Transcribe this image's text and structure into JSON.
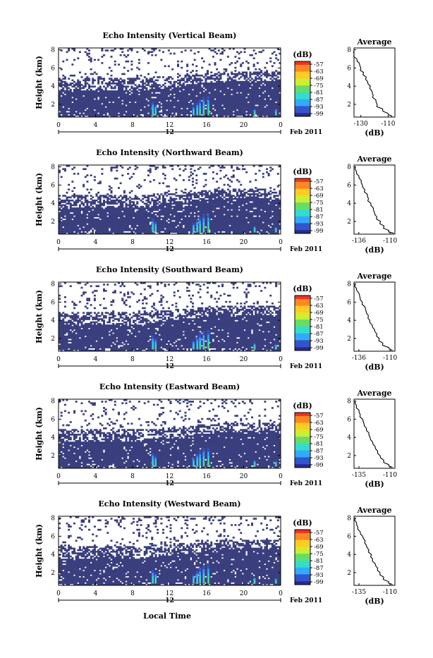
{
  "figure": {
    "xlabel": "Local Time",
    "date_label": "Feb 2011",
    "day_label": "12"
  },
  "chart_data": [
    {
      "type": "heatmap",
      "title": "Echo Intensity (Vertical Beam)",
      "ylabel": "Height (km)",
      "x_ticks": [
        "0",
        "4",
        "8",
        "12",
        "16",
        "20",
        "0"
      ],
      "x_range": [
        0,
        24
      ],
      "y_ticks": [
        "2",
        "4",
        "6",
        "8"
      ],
      "y_range": [
        0.6,
        8.2
      ],
      "colorbar": {
        "unit": "(dB)",
        "ticks": [
          "-57",
          "-63",
          "-69",
          "-75",
          "-81",
          "-87",
          "-93",
          "-99"
        ]
      },
      "profile": {
        "title": "Average",
        "xlabel": "(dB)",
        "x_ticks": [
          "-130",
          "-110"
        ],
        "x_range": [
          -135,
          -105
        ],
        "y_ticks": [
          "2",
          "4",
          "6",
          "8"
        ],
        "height": [
          0.7,
          1.0,
          1.5,
          2.0,
          2.5,
          3.0,
          3.5,
          4.0,
          4.5,
          5.0,
          5.5,
          6.0,
          6.5,
          7.0,
          7.5,
          8.0
        ],
        "db": [
          -107,
          -110,
          -114,
          -118,
          -119,
          -121,
          -122,
          -123,
          -125,
          -126,
          -128,
          -130,
          -131,
          -133,
          -135,
          -135
        ]
      }
    },
    {
      "type": "heatmap",
      "title": "Echo Intensity (Northward Beam)",
      "ylabel": "Height (km)",
      "x_ticks": [
        "0",
        "4",
        "8",
        "12",
        "16",
        "20",
        "0"
      ],
      "x_range": [
        0,
        24
      ],
      "y_ticks": [
        "2",
        "4",
        "6",
        "8"
      ],
      "y_range": [
        0.6,
        8.2
      ],
      "colorbar": {
        "unit": "(dB)",
        "ticks": [
          "-57",
          "-63",
          "-69",
          "-75",
          "-81",
          "-87",
          "-93",
          "-99"
        ]
      },
      "profile": {
        "title": "Average",
        "xlabel": "(dB)",
        "x_ticks": [
          "-136",
          "-110"
        ],
        "x_range": [
          -140,
          -106
        ],
        "y_ticks": [
          "2",
          "4",
          "6",
          "8"
        ],
        "height": [
          0.7,
          1.0,
          1.5,
          2.0,
          2.5,
          3.0,
          3.5,
          4.0,
          4.5,
          5.0,
          5.5,
          6.0,
          6.5,
          7.0,
          7.5,
          8.0
        ],
        "db": [
          -107,
          -111,
          -115,
          -118,
          -121,
          -123,
          -124,
          -126,
          -128,
          -129,
          -131,
          -133,
          -134,
          -136,
          -138,
          -139
        ]
      }
    },
    {
      "type": "heatmap",
      "title": "Echo Intensity (Southward Beam)",
      "ylabel": "Height (km)",
      "x_ticks": [
        "0",
        "4",
        "8",
        "12",
        "16",
        "20",
        "0"
      ],
      "x_range": [
        0,
        24
      ],
      "y_ticks": [
        "2",
        "4",
        "6",
        "8"
      ],
      "y_range": [
        0.6,
        8.2
      ],
      "colorbar": {
        "unit": "(dB)",
        "ticks": [
          "-57",
          "-63",
          "-69",
          "-75",
          "-81",
          "-87",
          "-93",
          "-99"
        ]
      },
      "profile": {
        "title": "Average",
        "xlabel": "(dB)",
        "x_ticks": [
          "-136",
          "-110"
        ],
        "x_range": [
          -140,
          -106
        ],
        "y_ticks": [
          "2",
          "4",
          "6",
          "8"
        ],
        "height": [
          0.7,
          1.0,
          1.5,
          2.0,
          2.5,
          3.0,
          3.5,
          4.0,
          4.5,
          5.0,
          5.5,
          6.0,
          6.5,
          7.0,
          7.5,
          8.0
        ],
        "db": [
          -108,
          -111,
          -116,
          -119,
          -121,
          -123,
          -125,
          -127,
          -128,
          -130,
          -131,
          -133,
          -135,
          -136,
          -138,
          -139
        ]
      }
    },
    {
      "type": "heatmap",
      "title": "Echo Intensity (Eastward Beam)",
      "ylabel": "Height (km)",
      "x_ticks": [
        "0",
        "4",
        "8",
        "12",
        "16",
        "20",
        "0"
      ],
      "x_range": [
        0,
        24
      ],
      "y_ticks": [
        "2",
        "4",
        "6",
        "8"
      ],
      "y_range": [
        0.6,
        8.2
      ],
      "colorbar": {
        "unit": "(dB)",
        "ticks": [
          "-57",
          "-63",
          "-69",
          "-75",
          "-81",
          "-87",
          "-93",
          "-99"
        ]
      },
      "profile": {
        "title": "Average",
        "xlabel": "(dB)",
        "x_ticks": [
          "-135",
          "-110"
        ],
        "x_range": [
          -139,
          -106
        ],
        "y_ticks": [
          "2",
          "4",
          "6",
          "8"
        ],
        "height": [
          0.7,
          1.0,
          1.5,
          2.0,
          2.5,
          3.0,
          3.5,
          4.0,
          4.5,
          5.0,
          5.5,
          6.0,
          6.5,
          7.0,
          7.5,
          8.0
        ],
        "db": [
          -108,
          -111,
          -115,
          -118,
          -120,
          -122,
          -124,
          -126,
          -127,
          -129,
          -131,
          -132,
          -134,
          -135,
          -137,
          -138
        ]
      }
    },
    {
      "type": "heatmap",
      "title": "Echo Intensity (Westward Beam)",
      "ylabel": "Height (km)",
      "x_ticks": [
        "0",
        "4",
        "8",
        "12",
        "16",
        "20",
        "0"
      ],
      "x_range": [
        0,
        24
      ],
      "y_ticks": [
        "2",
        "4",
        "6",
        "8"
      ],
      "y_range": [
        0.6,
        8.2
      ],
      "colorbar": {
        "unit": "(dB)",
        "ticks": [
          "-57",
          "-63",
          "-69",
          "-75",
          "-81",
          "-87",
          "-93",
          "-99"
        ]
      },
      "profile": {
        "title": "Average",
        "xlabel": "(dB)",
        "x_ticks": [
          "-135",
          "-110"
        ],
        "x_range": [
          -139,
          -106
        ],
        "y_ticks": [
          "2",
          "4",
          "6",
          "8"
        ],
        "height": [
          0.7,
          1.0,
          1.5,
          2.0,
          2.5,
          3.0,
          3.5,
          4.0,
          4.5,
          5.0,
          5.5,
          6.0,
          6.5,
          7.0,
          7.5,
          8.0
        ],
        "db": [
          -108,
          -111,
          -115,
          -118,
          -120,
          -122,
          -124,
          -125,
          -127,
          -129,
          -130,
          -132,
          -134,
          -136,
          -137,
          -138
        ]
      }
    }
  ],
  "colors": {
    "echo_fill": "#3a3f7e",
    "colormap": [
      "#2a2a8c",
      "#3355cc",
      "#33aaff",
      "#33ddcc",
      "#66dd66",
      "#ccee33",
      "#ffcc22",
      "#ff8822",
      "#ee3322"
    ]
  }
}
